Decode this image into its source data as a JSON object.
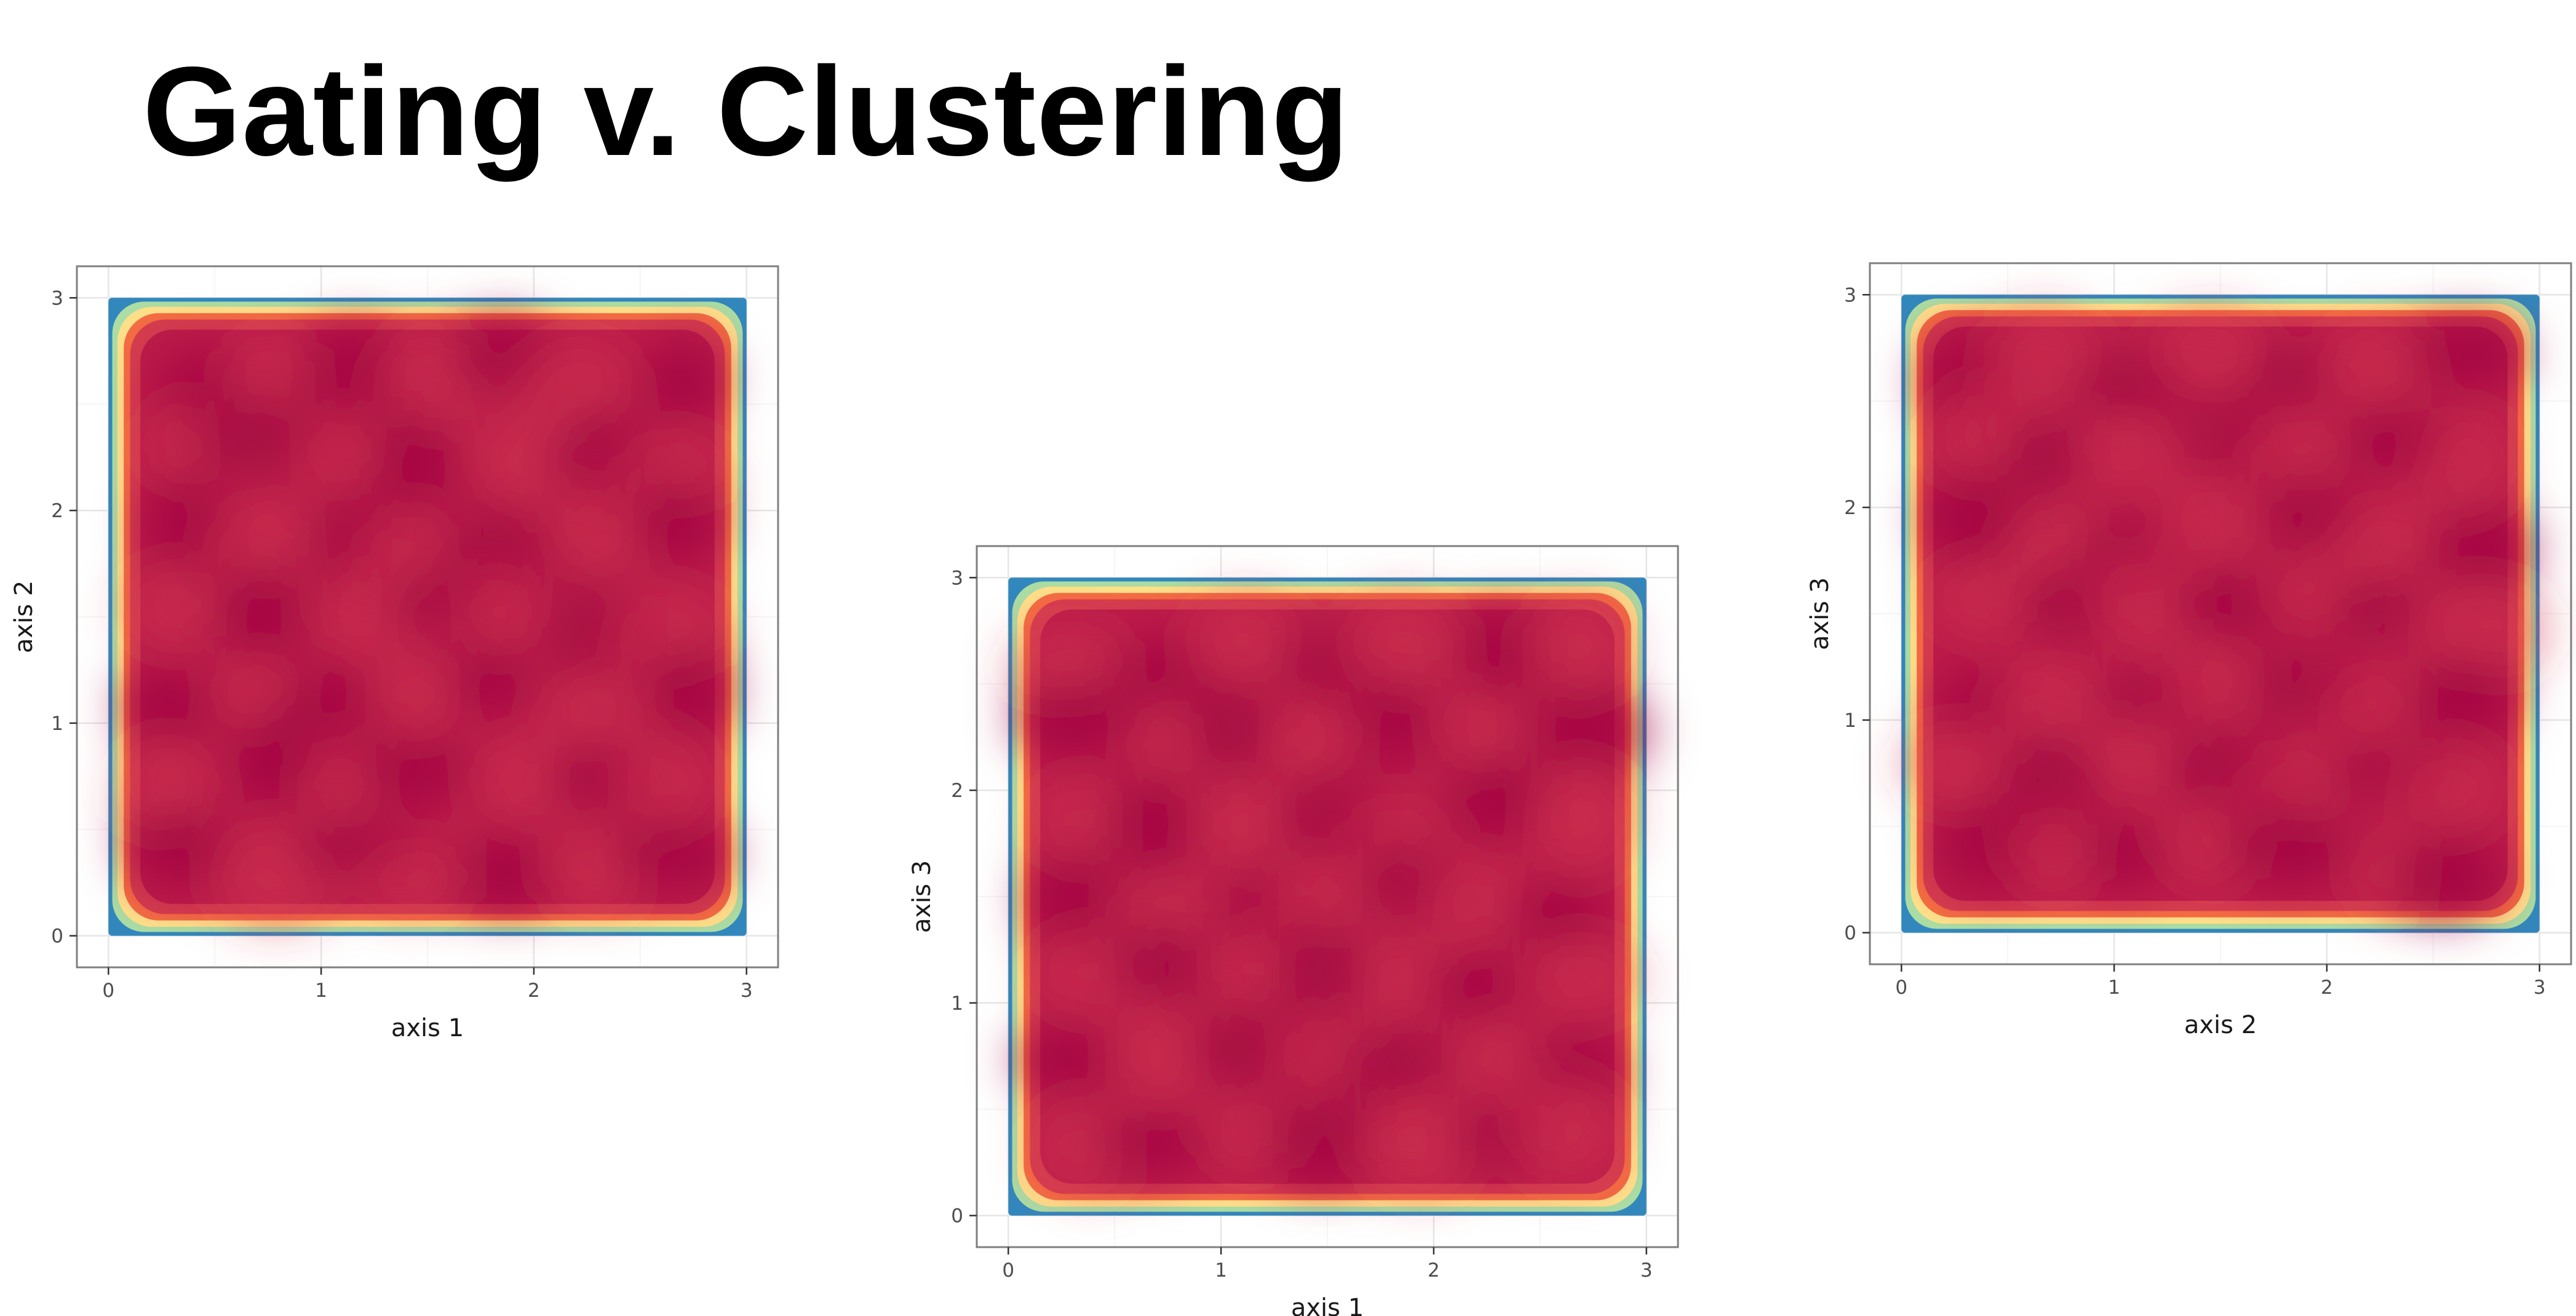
{
  "slide": {
    "title": "Gating v. Clustering"
  },
  "colors": {
    "background": "#ffffff",
    "panel_border": "#7f7f7f",
    "grid_major": "#e6e6e6",
    "grid_minor": "#f3f3f3",
    "density_palette": [
      "#9e0142",
      "#d53e4f",
      "#f46d43",
      "#fdae61",
      "#fee08b",
      "#e6f598",
      "#abdda4",
      "#66c2a5",
      "#3288bd"
    ]
  },
  "chart_data": [
    {
      "type": "heatmap",
      "title": "",
      "xlabel": "axis 1",
      "ylabel": "axis 2",
      "xlim": [
        0,
        3
      ],
      "ylim": [
        0,
        3
      ],
      "xticks": [
        "0",
        "1",
        "2",
        "3"
      ],
      "yticks": [
        "0",
        "1",
        "2",
        "3"
      ],
      "grid": true,
      "legend": "none",
      "points_extent": {
        "x": [
          0,
          3
        ],
        "y": [
          0,
          3
        ]
      },
      "density": "high and nearly uniform in interior, falling off toward edges"
    },
    {
      "type": "heatmap",
      "title": "",
      "xlabel": "axis 1",
      "ylabel": "axis 3",
      "xlim": [
        0,
        3
      ],
      "ylim": [
        0,
        3
      ],
      "xticks": [
        "0",
        "1",
        "2",
        "3"
      ],
      "yticks": [
        "0",
        "1",
        "2",
        "3"
      ],
      "grid": true,
      "legend": "none",
      "points_extent": {
        "x": [
          0,
          3
        ],
        "y": [
          0,
          3
        ]
      },
      "density": "high and nearly uniform in interior, falling off toward edges"
    },
    {
      "type": "heatmap",
      "title": "",
      "xlabel": "axis 2",
      "ylabel": "axis 3",
      "xlim": [
        0,
        3
      ],
      "ylim": [
        0,
        3
      ],
      "xticks": [
        "0",
        "1",
        "2",
        "3"
      ],
      "yticks": [
        "0",
        "1",
        "2",
        "3"
      ],
      "grid": true,
      "legend": "none",
      "points_extent": {
        "x": [
          0,
          3
        ],
        "y": [
          0,
          3
        ]
      },
      "density": "high and nearly uniform in interior, falling off toward edges"
    }
  ]
}
